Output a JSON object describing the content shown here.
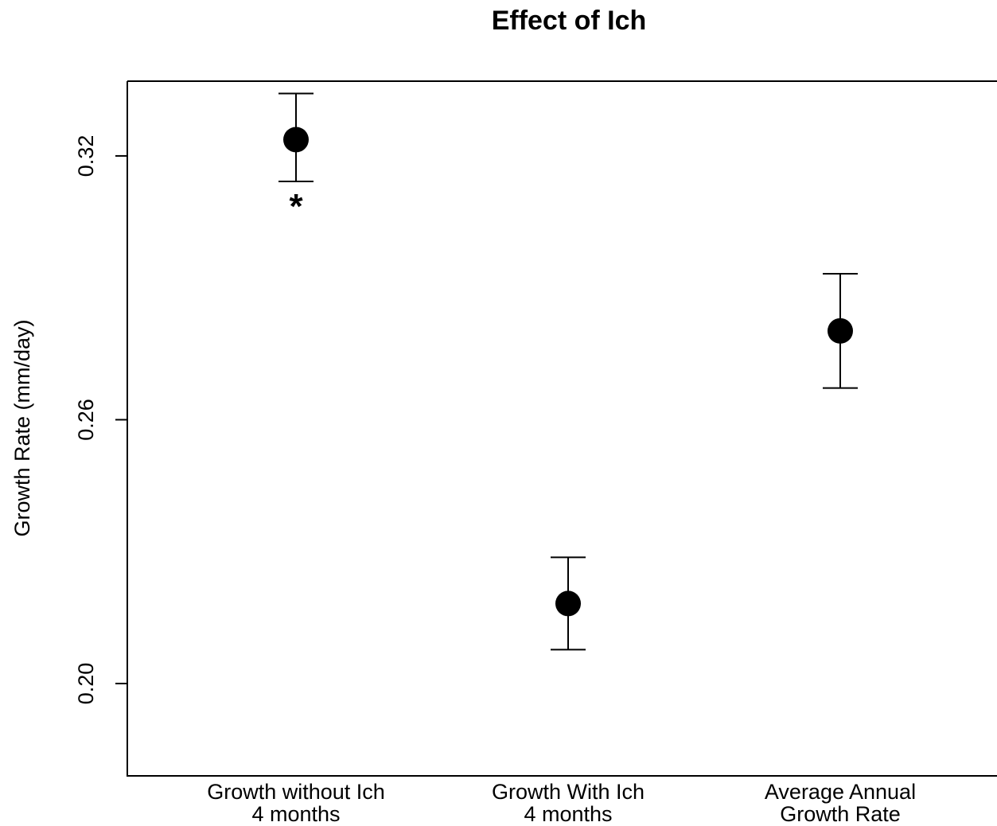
{
  "chart_data": {
    "type": "scatter",
    "title": "Effect of Ich",
    "xlabel": "",
    "ylabel": "Growth Rate (mm/day)",
    "ylim": [
      0.179,
      0.337
    ],
    "yticks": [
      "0.20",
      "0.26",
      "0.32"
    ],
    "grid": false,
    "legend": "none",
    "point_color": "#000000",
    "categories": [
      [
        "Growth without Ich",
        "4 months"
      ],
      [
        "Growth With Ich",
        "4 months"
      ],
      [
        "Average Annual",
        "Growth Rate"
      ]
    ],
    "points": [
      {
        "y": 0.3237,
        "lower": 0.3142,
        "upper": 0.3342,
        "annotation": "*"
      },
      {
        "y": 0.2182,
        "lower": 0.2077,
        "upper": 0.2287,
        "annotation": ""
      },
      {
        "y": 0.2802,
        "lower": 0.2672,
        "upper": 0.2932,
        "annotation": ""
      }
    ]
  }
}
